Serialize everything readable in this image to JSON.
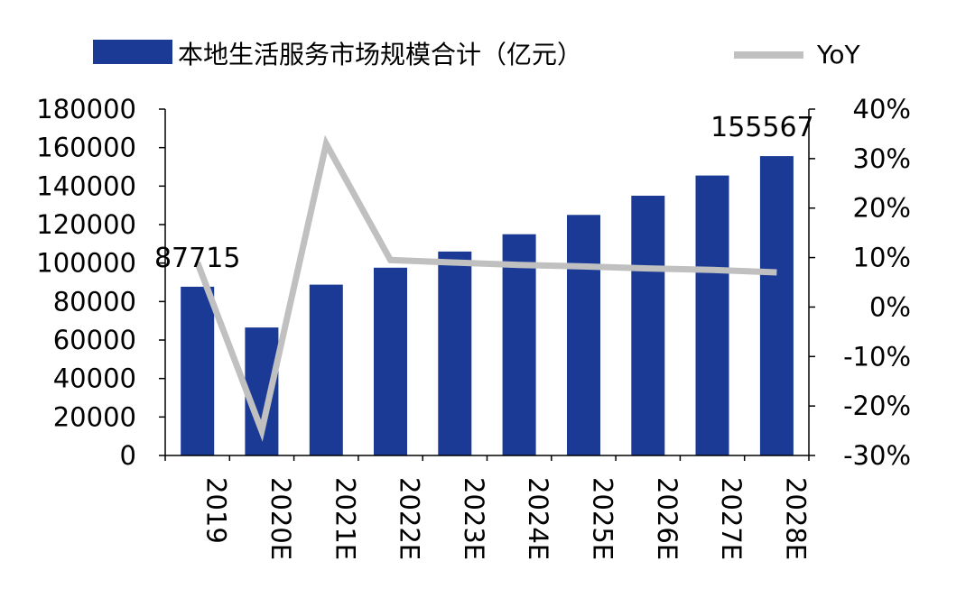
{
  "chart_data": {
    "type": "bar",
    "categories": [
      "2019",
      "2020E",
      "2021E",
      "2022E",
      "2023E",
      "2024E",
      "2025E",
      "2026E",
      "2027E",
      "2028E"
    ],
    "series": [
      {
        "name": "本地生活服务市场规模合计（亿元）",
        "type": "bar",
        "axis": "left",
        "color": "#1a3a96",
        "values": [
          87715,
          66500,
          88800,
          97600,
          106000,
          115000,
          125000,
          135000,
          145500,
          155567
        ]
      },
      {
        "name": "YoY",
        "type": "line",
        "axis": "right",
        "color": "#c0c0c0",
        "values": [
          9.0,
          -25.0,
          33.0,
          9.5,
          9.0,
          8.5,
          8.2,
          7.8,
          7.5,
          7.0
        ]
      }
    ],
    "data_labels": [
      {
        "category": "2019",
        "text": "87715"
      },
      {
        "category": "2028E",
        "text": "155567"
      }
    ],
    "y_left": {
      "ylim": [
        0,
        180000
      ],
      "ticks": [
        "0",
        "20000",
        "40000",
        "60000",
        "80000",
        "100000",
        "120000",
        "140000",
        "160000",
        "180000"
      ]
    },
    "y_right": {
      "ylim": [
        -30,
        40
      ],
      "ticks": [
        "-30%",
        "-20%",
        "-10%",
        "0%",
        "10%",
        "20%",
        "30%",
        "40%"
      ]
    },
    "legend": {
      "position": "top",
      "entries": [
        "本地生活服务市场规模合计（亿元）",
        "YoY"
      ]
    },
    "grid": false
  }
}
